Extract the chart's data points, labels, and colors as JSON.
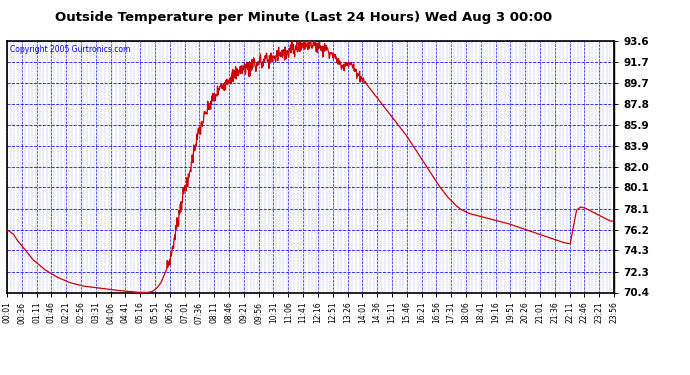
{
  "title": "Outside Temperature per Minute (Last 24 Hours) Wed Aug 3 00:00",
  "copyright": "Copyright 2005 Gurtronics.com",
  "bg_color": "#ffffff",
  "plot_bg_color": "#ffffff",
  "line_color": "#cc0000",
  "grid_color": "#0000ff",
  "yticks": [
    70.4,
    72.3,
    74.3,
    76.2,
    78.1,
    80.1,
    82.0,
    83.9,
    85.9,
    87.8,
    89.7,
    91.7,
    93.6
  ],
  "xtick_labels": [
    "00:01",
    "00:36",
    "01:11",
    "01:46",
    "02:21",
    "02:56",
    "03:31",
    "04:06",
    "04:41",
    "05:16",
    "05:51",
    "06:26",
    "07:01",
    "07:36",
    "08:11",
    "08:46",
    "09:21",
    "09:56",
    "10:31",
    "11:06",
    "11:41",
    "12:16",
    "12:51",
    "13:26",
    "14:01",
    "14:36",
    "15:11",
    "15:46",
    "16:21",
    "16:56",
    "17:31",
    "18:06",
    "18:41",
    "19:16",
    "19:51",
    "20:26",
    "21:01",
    "21:36",
    "22:11",
    "22:46",
    "23:21",
    "23:56"
  ],
  "ymin": 70.4,
  "ymax": 93.6,
  "key_points": [
    [
      0,
      76.2
    ],
    [
      15,
      75.8
    ],
    [
      25,
      75.2
    ],
    [
      40,
      74.5
    ],
    [
      60,
      73.5
    ],
    [
      90,
      72.5
    ],
    [
      120,
      71.8
    ],
    [
      150,
      71.3
    ],
    [
      180,
      71.0
    ],
    [
      220,
      70.8
    ],
    [
      260,
      70.6
    ],
    [
      290,
      70.5
    ],
    [
      310,
      70.42
    ],
    [
      325,
      70.4
    ],
    [
      335,
      70.41
    ],
    [
      345,
      70.5
    ],
    [
      355,
      70.8
    ],
    [
      365,
      71.3
    ],
    [
      375,
      72.2
    ],
    [
      385,
      73.3
    ],
    [
      390,
      74.0
    ],
    [
      395,
      75.0
    ],
    [
      400,
      76.0
    ],
    [
      405,
      77.0
    ],
    [
      410,
      78.0
    ],
    [
      415,
      79.0
    ],
    [
      420,
      79.8
    ],
    [
      425,
      80.5
    ],
    [
      428,
      80.1
    ],
    [
      432,
      81.2
    ],
    [
      438,
      82.5
    ],
    [
      445,
      83.8
    ],
    [
      455,
      85.2
    ],
    [
      465,
      86.3
    ],
    [
      475,
      87.2
    ],
    [
      485,
      88.0
    ],
    [
      495,
      88.6
    ],
    [
      505,
      89.2
    ],
    [
      515,
      89.7
    ],
    [
      525,
      90.1
    ],
    [
      535,
      90.4
    ],
    [
      545,
      90.7
    ],
    [
      555,
      91.0
    ],
    [
      565,
      91.2
    ],
    [
      570,
      91.3
    ],
    [
      575,
      91.0
    ],
    [
      580,
      91.5
    ],
    [
      585,
      91.8
    ],
    [
      590,
      91.2
    ],
    [
      595,
      91.6
    ],
    [
      600,
      91.9
    ],
    [
      605,
      91.4
    ],
    [
      610,
      91.8
    ],
    [
      615,
      92.1
    ],
    [
      620,
      91.7
    ],
    [
      625,
      92.0
    ],
    [
      630,
      92.3
    ],
    [
      635,
      91.9
    ],
    [
      640,
      92.3
    ],
    [
      645,
      92.6
    ],
    [
      650,
      92.2
    ],
    [
      655,
      92.5
    ],
    [
      660,
      92.8
    ],
    [
      665,
      92.4
    ],
    [
      670,
      92.7
    ],
    [
      675,
      93.0
    ],
    [
      680,
      92.6
    ],
    [
      685,
      92.9
    ],
    [
      690,
      93.2
    ],
    [
      695,
      92.9
    ],
    [
      700,
      93.2
    ],
    [
      705,
      93.5
    ],
    [
      710,
      93.2
    ],
    [
      715,
      93.4
    ],
    [
      720,
      93.6
    ],
    [
      725,
      93.3
    ],
    [
      730,
      93.5
    ],
    [
      735,
      93.4
    ],
    [
      740,
      93.2
    ],
    [
      745,
      93.0
    ],
    [
      750,
      92.9
    ],
    [
      755,
      93.1
    ],
    [
      760,
      92.8
    ],
    [
      765,
      92.6
    ],
    [
      770,
      92.4
    ],
    [
      775,
      92.2
    ],
    [
      780,
      92.0
    ],
    [
      785,
      91.8
    ],
    [
      790,
      91.5
    ],
    [
      795,
      91.2
    ],
    [
      800,
      91.5
    ],
    [
      805,
      91.7
    ],
    [
      810,
      91.4
    ],
    [
      815,
      91.6
    ],
    [
      820,
      91.2
    ],
    [
      825,
      90.9
    ],
    [
      835,
      90.5
    ],
    [
      845,
      90.0
    ],
    [
      855,
      89.5
    ],
    [
      865,
      89.0
    ],
    [
      875,
      88.5
    ],
    [
      885,
      88.0
    ],
    [
      895,
      87.5
    ],
    [
      905,
      87.0
    ],
    [
      915,
      86.5
    ],
    [
      925,
      86.0
    ],
    [
      935,
      85.5
    ],
    [
      945,
      85.0
    ],
    [
      955,
      84.4
    ],
    [
      965,
      83.8
    ],
    [
      975,
      83.2
    ],
    [
      985,
      82.6
    ],
    [
      995,
      82.0
    ],
    [
      1005,
      81.4
    ],
    [
      1015,
      80.8
    ],
    [
      1025,
      80.2
    ],
    [
      1035,
      79.7
    ],
    [
      1045,
      79.2
    ],
    [
      1055,
      78.8
    ],
    [
      1065,
      78.4
    ],
    [
      1075,
      78.1
    ],
    [
      1085,
      77.9
    ],
    [
      1095,
      77.7
    ],
    [
      1105,
      77.6
    ],
    [
      1115,
      77.5
    ],
    [
      1125,
      77.4
    ],
    [
      1135,
      77.3
    ],
    [
      1145,
      77.2
    ],
    [
      1155,
      77.1
    ],
    [
      1165,
      77.0
    ],
    [
      1175,
      76.9
    ],
    [
      1185,
      76.8
    ],
    [
      1200,
      76.6
    ],
    [
      1215,
      76.4
    ],
    [
      1230,
      76.2
    ],
    [
      1245,
      76.0
    ],
    [
      1260,
      75.8
    ],
    [
      1275,
      75.6
    ],
    [
      1290,
      75.4
    ],
    [
      1305,
      75.2
    ],
    [
      1320,
      75.0
    ],
    [
      1335,
      74.9
    ],
    [
      1350,
      78.0
    ],
    [
      1360,
      78.3
    ],
    [
      1370,
      78.2
    ],
    [
      1380,
      78.0
    ],
    [
      1390,
      77.8
    ],
    [
      1400,
      77.6
    ],
    [
      1410,
      77.4
    ],
    [
      1420,
      77.2
    ],
    [
      1430,
      77.0
    ],
    [
      1439,
      77.0
    ]
  ]
}
